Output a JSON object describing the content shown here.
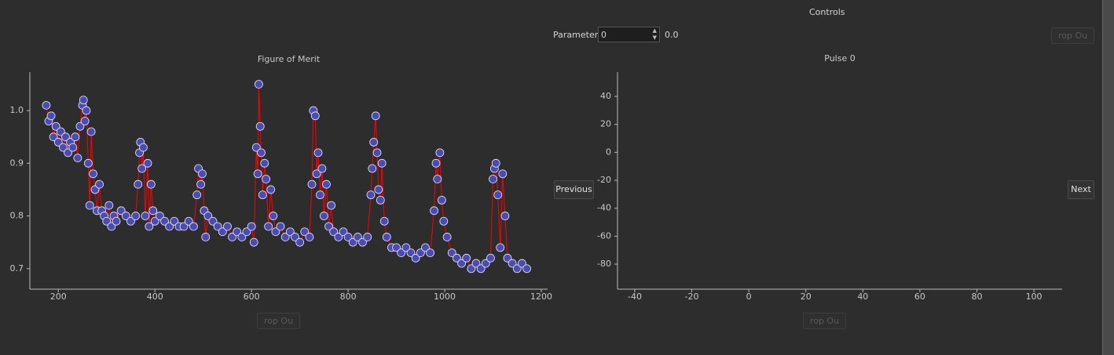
{
  "controls": {
    "title": "Controls",
    "parameter_label": "Parameter",
    "parameter_value": "0",
    "parameter_display": "0.0",
    "drop_button_top": "rop Ou",
    "drop_button_left": "rop Ou",
    "drop_button_right": "rop Ou"
  },
  "navigation": {
    "previous": "Previous",
    "next": "Next"
  },
  "chart_data": [
    {
      "type": "line",
      "title": "Figure of Merit",
      "x": [
        175,
        180,
        185,
        190,
        195,
        200,
        205,
        210,
        215,
        220,
        225,
        230,
        235,
        240,
        245,
        250,
        252,
        255,
        258,
        262,
        265,
        268,
        272,
        276,
        280,
        285,
        290,
        295,
        300,
        305,
        310,
        315,
        320,
        330,
        340,
        350,
        360,
        365,
        368,
        370,
        373,
        376,
        380,
        385,
        388,
        392,
        396,
        400,
        410,
        420,
        430,
        440,
        450,
        460,
        470,
        480,
        487,
        490,
        495,
        498,
        502,
        505,
        510,
        520,
        530,
        540,
        550,
        560,
        570,
        580,
        590,
        600,
        605,
        610,
        613,
        615,
        618,
        620,
        623,
        627,
        630,
        635,
        640,
        645,
        650,
        660,
        670,
        680,
        690,
        700,
        710,
        720,
        725,
        728,
        732,
        735,
        738,
        742,
        746,
        750,
        755,
        760,
        765,
        770,
        780,
        790,
        800,
        810,
        820,
        830,
        840,
        847,
        850,
        853,
        857,
        860,
        863,
        867,
        870,
        875,
        880,
        890,
        900,
        910,
        920,
        930,
        940,
        950,
        960,
        970,
        978,
        982,
        985,
        990,
        994,
        998,
        1005,
        1015,
        1025,
        1035,
        1045,
        1055,
        1065,
        1075,
        1085,
        1095,
        1100,
        1103,
        1106,
        1110,
        1115,
        1120,
        1125,
        1130,
        1140,
        1150,
        1160,
        1170
      ],
      "series": [
        {
          "line_color": "#ff0000",
          "color": "#4b4bb0",
          "values": [
            1.01,
            0.98,
            0.99,
            0.95,
            0.97,
            0.94,
            0.96,
            0.93,
            0.95,
            0.92,
            0.94,
            0.93,
            0.95,
            0.91,
            0.97,
            1.01,
            1.02,
            0.98,
            1.0,
            0.9,
            0.82,
            0.96,
            0.88,
            0.85,
            0.81,
            0.86,
            0.81,
            0.8,
            0.79,
            0.82,
            0.78,
            0.8,
            0.79,
            0.81,
            0.8,
            0.79,
            0.8,
            0.86,
            0.92,
            0.94,
            0.89,
            0.93,
            0.8,
            0.9,
            0.78,
            0.86,
            0.81,
            0.79,
            0.8,
            0.79,
            0.78,
            0.79,
            0.78,
            0.78,
            0.79,
            0.78,
            0.84,
            0.89,
            0.86,
            0.88,
            0.81,
            0.76,
            0.8,
            0.79,
            0.78,
            0.77,
            0.78,
            0.76,
            0.77,
            0.76,
            0.77,
            0.78,
            0.75,
            0.93,
            0.88,
            1.05,
            0.97,
            0.92,
            0.84,
            0.9,
            0.87,
            0.78,
            0.85,
            0.8,
            0.77,
            0.78,
            0.76,
            0.77,
            0.76,
            0.75,
            0.77,
            0.76,
            0.86,
            1.0,
            0.99,
            0.88,
            0.92,
            0.84,
            0.89,
            0.8,
            0.86,
            0.78,
            0.82,
            0.77,
            0.76,
            0.77,
            0.76,
            0.75,
            0.76,
            0.75,
            0.76,
            0.84,
            0.89,
            0.94,
            0.99,
            0.92,
            0.85,
            0.83,
            0.9,
            0.79,
            0.76,
            0.74,
            0.74,
            0.73,
            0.74,
            0.73,
            0.72,
            0.73,
            0.74,
            0.73,
            0.81,
            0.9,
            0.87,
            0.92,
            0.83,
            0.79,
            0.76,
            0.73,
            0.72,
            0.71,
            0.72,
            0.7,
            0.71,
            0.7,
            0.71,
            0.72,
            0.87,
            0.89,
            0.9,
            0.84,
            0.74,
            0.88,
            0.8,
            0.72,
            0.71,
            0.7,
            0.71,
            0.7
          ]
        }
      ],
      "xlim": [
        141,
        1213
      ],
      "xticks": [
        200,
        400,
        600,
        800,
        1000,
        1200
      ],
      "ylim": [
        0.661,
        1.073
      ],
      "yticks": [
        0.7,
        0.8,
        0.9,
        {
          "value": 1,
          "label": "1.0"
        }
      ]
    },
    {
      "type": "line",
      "title": "Pulse 0",
      "series": [],
      "xlim": [
        -46.06,
        109.9
      ],
      "xticks": [
        -40,
        -20,
        0,
        20,
        40,
        60,
        80,
        100
      ],
      "ylim": [
        -97.9,
        57.4
      ],
      "yticks": [
        -80,
        -60,
        -40,
        -20,
        0,
        20,
        40
      ]
    }
  ]
}
